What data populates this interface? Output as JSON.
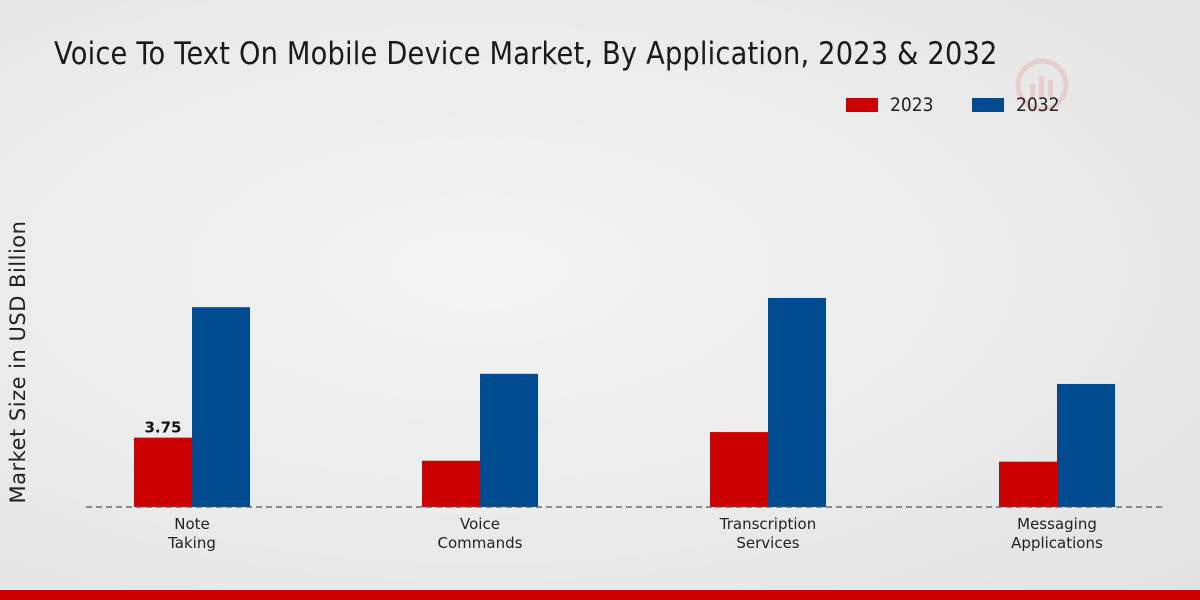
{
  "chart_data": {
    "type": "bar",
    "title": "Voice To Text On Mobile Device Market, By Application, 2023 & 2032",
    "xlabel": "",
    "ylabel": "Market Size in USD Billion",
    "categories": [
      [
        "Note",
        "Taking"
      ],
      [
        "Voice",
        "Commands"
      ],
      [
        "Transcription",
        "Services"
      ],
      [
        "Messaging",
        "Applications"
      ]
    ],
    "series": [
      {
        "name": "2023",
        "color": "#cc0000",
        "values": [
          3.75,
          2.5,
          4.05,
          2.45
        ]
      },
      {
        "name": "2032",
        "color": "#004a8f",
        "values": [
          10.8,
          7.2,
          11.3,
          6.65
        ]
      }
    ],
    "data_labels": [
      {
        "series": 0,
        "index": 0,
        "text": "3.75"
      }
    ],
    "ylim": [
      0,
      20
    ],
    "grid": false,
    "legend": "top-right"
  }
}
